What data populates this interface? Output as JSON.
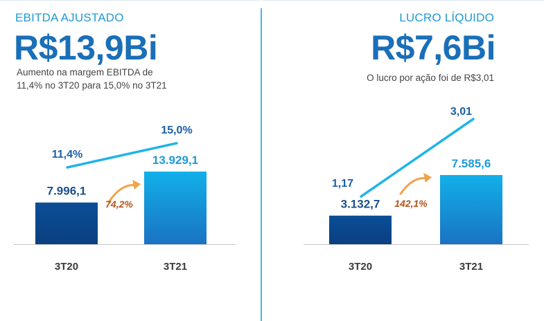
{
  "colors": {
    "dark_blue": "#0a4e96",
    "light_blue": "#12b0ea",
    "line": "#1fb4e8",
    "arrow": "#f3a24a",
    "growth_text": "#b5541b",
    "title_text": "#1e9ad6",
    "value_text": "#1a6fb8"
  },
  "left": {
    "title": "EBITDA AJUSTADO",
    "big_value": "R$13,9Bi",
    "description": "Aumento na margem EBITDA de 11,4% no 3T20 para 15,0% no 3T21"
  },
  "right": {
    "title": "LUCRO LÍQUIDO",
    "big_value": "R$7,6Bi",
    "description": "O lucro por ação foi de R$3,01"
  },
  "chart_data": [
    {
      "type": "bar",
      "categories": [
        "3T20",
        "3T21"
      ],
      "values": [
        7996.1,
        13929.1
      ],
      "value_labels": [
        "7.996,1",
        "13.929,1"
      ],
      "growth_label": "74,2%",
      "line_series": {
        "values": [
          11.4,
          15.0
        ],
        "labels": [
          "11,4%",
          "15,0%"
        ]
      }
    },
    {
      "type": "bar",
      "categories": [
        "3T20",
        "3T21"
      ],
      "values": [
        3132.7,
        7585.6
      ],
      "value_labels": [
        "3.132,7",
        "7.585,6"
      ],
      "growth_label": "142,1%",
      "line_series": {
        "values": [
          1.17,
          3.01
        ],
        "labels": [
          "1,17",
          "3,01"
        ]
      }
    }
  ]
}
